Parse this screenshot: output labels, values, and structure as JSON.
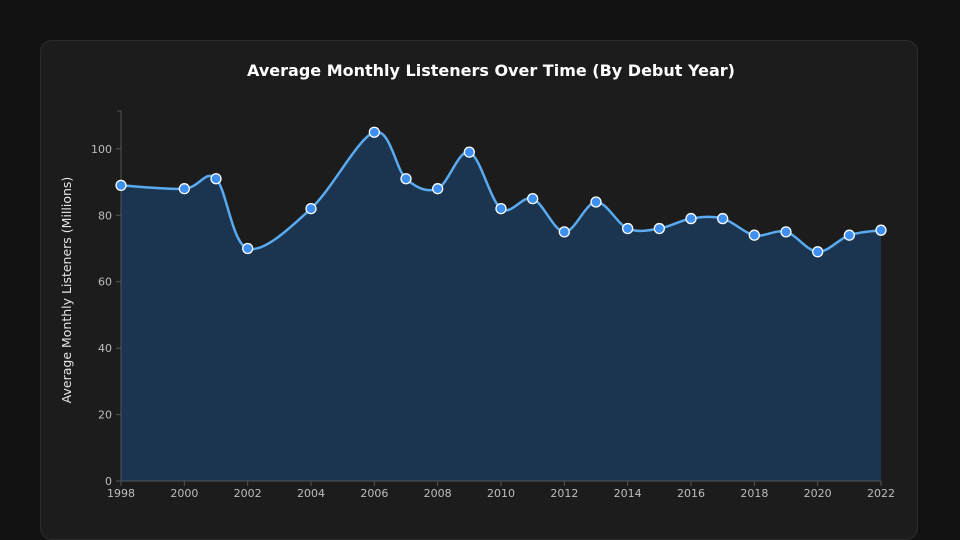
{
  "chart_data": {
    "type": "area",
    "title": "Average Monthly Listeners Over Time (By Debut Year)",
    "xlabel": "",
    "ylabel": "Average Monthly Listeners (Millions)",
    "x": [
      1998,
      2000,
      2001,
      2002,
      2004,
      2006,
      2007,
      2008,
      2009,
      2010,
      2011,
      2012,
      2013,
      2014,
      2015,
      2016,
      2017,
      2018,
      2019,
      2020,
      2021,
      2022
    ],
    "values": [
      89,
      88,
      91,
      70,
      82,
      105,
      91,
      88,
      99,
      82,
      85,
      75,
      84,
      76,
      76,
      79,
      79,
      74,
      75,
      69,
      74,
      75.5
    ],
    "xticks": [
      1998,
      2000,
      2002,
      2004,
      2006,
      2008,
      2010,
      2012,
      2014,
      2016,
      2018,
      2020,
      2022
    ],
    "yticks": [
      0,
      20,
      40,
      60,
      80,
      100
    ],
    "xlim": [
      1998,
      2022
    ],
    "ylim": [
      0,
      115
    ],
    "grid": false,
    "colors": {
      "line": "#5aaaf0",
      "fill": "#1b3550",
      "marker": "#3d8ff0",
      "marker_edge": "#ffffff"
    }
  }
}
